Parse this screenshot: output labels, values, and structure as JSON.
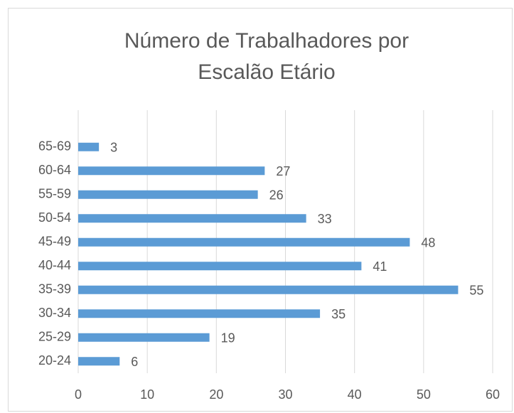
{
  "chart_data": {
    "type": "bar",
    "orientation": "horizontal",
    "title": "Número de Trabalhadores por Escalão Etário",
    "categories": [
      "20-24",
      "25-29",
      "30-34",
      "35-39",
      "40-44",
      "45-49",
      "50-54",
      "55-59",
      "60-64",
      "65-69"
    ],
    "values": [
      6,
      19,
      35,
      55,
      41,
      48,
      33,
      26,
      27,
      3
    ],
    "color": "#5b9bd5",
    "xlim": [
      0,
      60
    ],
    "xticks": [
      0,
      10,
      20,
      30,
      40,
      50,
      60
    ],
    "grid": true
  }
}
